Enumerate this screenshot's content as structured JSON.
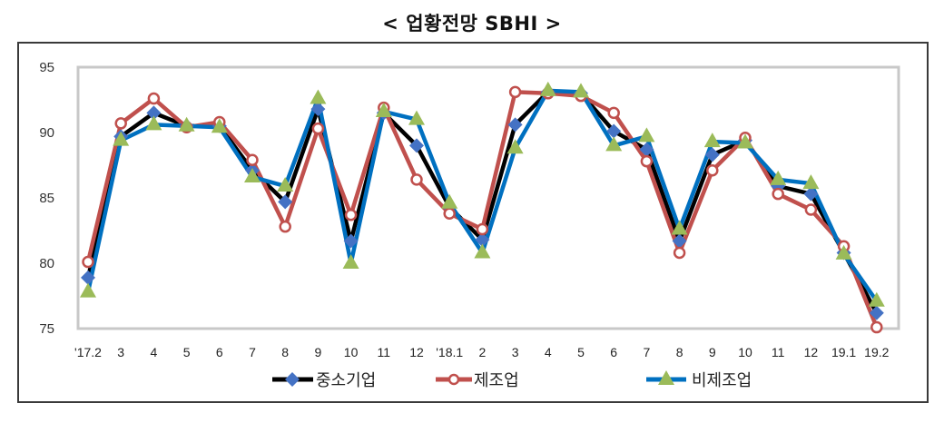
{
  "title": "< 업황전망 SBHI >",
  "chart_data": {
    "type": "line",
    "title": "< 업황전망 SBHI >",
    "xlabel": "",
    "ylabel": "",
    "ylim": [
      75,
      95
    ],
    "yticks": [
      95,
      90,
      85,
      80,
      75
    ],
    "grid": false,
    "legend_position": "bottom",
    "categories": [
      "'17.2",
      "3",
      "4",
      "5",
      "6",
      "7",
      "8",
      "9",
      "10",
      "11",
      "12",
      "'18.1",
      "2",
      "3",
      "4",
      "5",
      "6",
      "7",
      "8",
      "9",
      "10",
      "11",
      "12",
      "19.1",
      "19.2"
    ],
    "series": [
      {
        "name": "중소기업",
        "line_color": "#000000",
        "marker": "diamond",
        "marker_color": "#4472c4",
        "values": [
          78.9,
          89.7,
          91.5,
          90.5,
          90.5,
          87.1,
          84.7,
          91.8,
          81.7,
          91.5,
          89.0,
          84.3,
          81.8,
          90.6,
          93.1,
          93.0,
          90.1,
          88.7,
          81.7,
          88.3,
          89.4,
          85.9,
          85.3,
          80.8,
          76.2
        ]
      },
      {
        "name": "제조업",
        "line_color": "#c0504d",
        "marker": "circle-open",
        "marker_color": "#c0504d",
        "values": [
          80.1,
          90.7,
          92.6,
          90.4,
          90.8,
          87.9,
          82.8,
          90.3,
          83.7,
          91.9,
          86.4,
          83.8,
          82.6,
          93.1,
          93.0,
          92.8,
          91.5,
          87.8,
          80.8,
          87.1,
          89.6,
          85.3,
          84.1,
          81.3,
          75.1
        ]
      },
      {
        "name": "비제조업",
        "line_color": "#0070c0",
        "marker": "triangle",
        "marker_color": "#9bbb59",
        "values": [
          77.8,
          89.4,
          90.6,
          90.5,
          90.4,
          86.6,
          85.9,
          92.6,
          80.0,
          91.6,
          91.0,
          84.6,
          80.8,
          88.8,
          93.2,
          93.1,
          89.0,
          89.7,
          82.6,
          89.3,
          89.2,
          86.4,
          86.1,
          80.7,
          77.1
        ]
      }
    ]
  },
  "legend": [
    {
      "label": "중소기업"
    },
    {
      "label": "제조업"
    },
    {
      "label": "비제조업"
    }
  ]
}
